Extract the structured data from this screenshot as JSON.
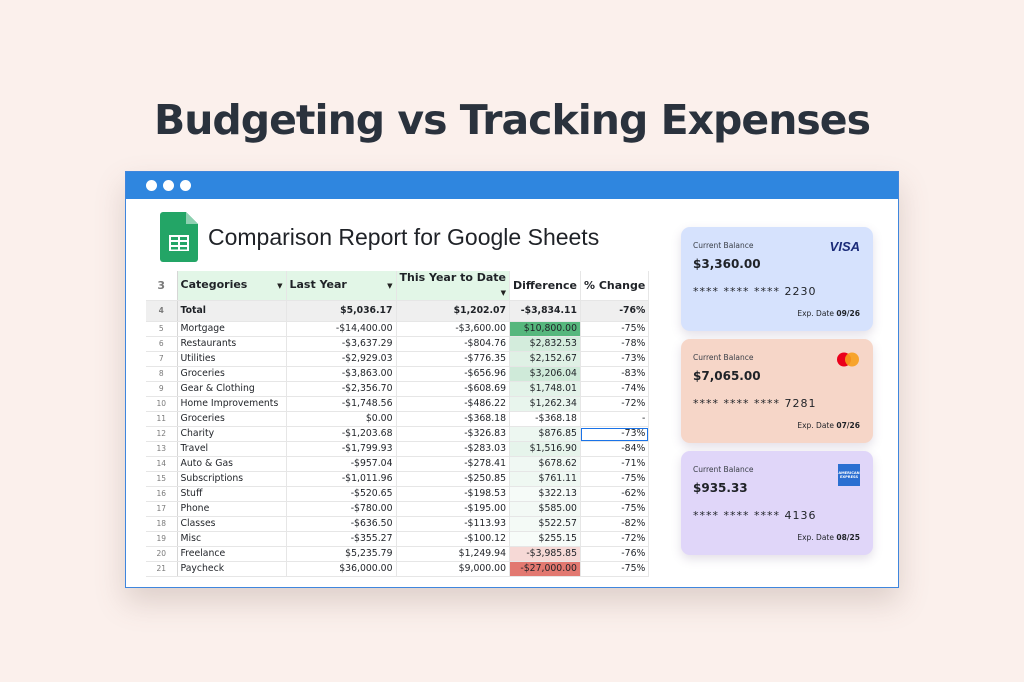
{
  "headline": "Budgeting vs Tracking Expenses",
  "report_title": "Comparison Report for Google Sheets",
  "columns": {
    "categories": "Categories",
    "last_year": "Last Year",
    "this_year": "This Year to Date",
    "difference": "Difference",
    "pct_change": "% Change"
  },
  "header_row_number": "3",
  "total": {
    "row_number": "4",
    "label": "Total",
    "last_year": "$5,036.17",
    "this_year": "$1,202.07",
    "difference": "-$3,834.11",
    "pct_change": "-76%"
  },
  "rows": [
    {
      "n": "5",
      "cat": "Mortgage",
      "ly": "-$14,400.00",
      "ty": "-$3,600.00",
      "diff": "$10,800.00",
      "pct": "-75%",
      "tone": "#56b77d"
    },
    {
      "n": "6",
      "cat": "Restaurants",
      "ly": "-$3,637.29",
      "ty": "-$804.76",
      "diff": "$2,832.53",
      "pct": "-78%",
      "tone": "#d3ecdc"
    },
    {
      "n": "7",
      "cat": "Utilities",
      "ly": "-$2,929.03",
      "ty": "-$776.35",
      "diff": "$2,152.67",
      "pct": "-73%",
      "tone": "#dff1e5"
    },
    {
      "n": "8",
      "cat": "Groceries",
      "ly": "-$3,863.00",
      "ty": "-$656.96",
      "diff": "$3,206.04",
      "pct": "-83%",
      "tone": "#cfead9"
    },
    {
      "n": "9",
      "cat": "Gear & Clothing",
      "ly": "-$2,356.70",
      "ty": "-$608.69",
      "diff": "$1,748.01",
      "pct": "-74%",
      "tone": "#e3f3e9"
    },
    {
      "n": "10",
      "cat": "Home Improvements",
      "ly": "-$1,748.56",
      "ty": "-$486.22",
      "diff": "$1,262.34",
      "pct": "-72%",
      "tone": "#e8f5ed"
    },
    {
      "n": "11",
      "cat": "Groceries",
      "ly": "$0.00",
      "ty": "-$368.18",
      "diff": "-$368.18",
      "pct": "-",
      "tone": "#ffffff"
    },
    {
      "n": "12",
      "cat": "Charity",
      "ly": "-$1,203.68",
      "ty": "-$326.83",
      "diff": "$876.85",
      "pct": "-73%",
      "tone": "#edf7f1"
    },
    {
      "n": "13",
      "cat": "Travel",
      "ly": "-$1,799.93",
      "ty": "-$283.03",
      "diff": "$1,516.90",
      "pct": "-84%",
      "tone": "#e6f4eb"
    },
    {
      "n": "14",
      "cat": "Auto & Gas",
      "ly": "-$957.04",
      "ty": "-$278.41",
      "diff": "$678.62",
      "pct": "-71%",
      "tone": "#f0f8f3"
    },
    {
      "n": "15",
      "cat": "Subscriptions",
      "ly": "-$1,011.96",
      "ty": "-$250.85",
      "diff": "$761.11",
      "pct": "-75%",
      "tone": "#eff8f2"
    },
    {
      "n": "16",
      "cat": "Stuff",
      "ly": "-$520.65",
      "ty": "-$198.53",
      "diff": "$322.13",
      "pct": "-62%",
      "tone": "#f6fbf8"
    },
    {
      "n": "17",
      "cat": "Phone",
      "ly": "-$780.00",
      "ty": "-$195.00",
      "diff": "$585.00",
      "pct": "-75%",
      "tone": "#f3f9f5"
    },
    {
      "n": "18",
      "cat": "Classes",
      "ly": "-$636.50",
      "ty": "-$113.93",
      "diff": "$522.57",
      "pct": "-82%",
      "tone": "#f4faf6"
    },
    {
      "n": "19",
      "cat": "Misc",
      "ly": "-$355.27",
      "ty": "-$100.12",
      "diff": "$255.15",
      "pct": "-72%",
      "tone": "#f7fcf9"
    },
    {
      "n": "20",
      "cat": "Freelance",
      "ly": "$5,235.79",
      "ty": "$1,249.94",
      "diff": "-$3,985.85",
      "pct": "-76%",
      "tone": "#f6d9d6"
    },
    {
      "n": "21",
      "cat": "Paycheck",
      "ly": "$36,000.00",
      "ty": "$9,000.00",
      "diff": "-$27,000.00",
      "pct": "-75%",
      "tone": "#e27870"
    }
  ],
  "selected_row_number": "12",
  "cards": [
    {
      "label": "Current Balance",
      "balance": "$3,360.00",
      "masked": "**** **** ****",
      "last4": "2230",
      "exp_label": "Exp. Date",
      "exp": "09/26",
      "brand": "VISA",
      "bg": "#d6e2fd"
    },
    {
      "label": "Current Balance",
      "balance": "$7,065.00",
      "masked": "**** **** ****",
      "last4": "7281",
      "exp_label": "Exp. Date",
      "exp": "07/26",
      "brand": "mastercard-logo",
      "bg": "#f6d6c8"
    },
    {
      "label": "Current Balance",
      "balance": "$935.33",
      "masked": "**** **** ****",
      "last4": "4136",
      "exp_label": "Exp. Date",
      "exp": "08/25",
      "brand": "amex-logo",
      "bg": "#e0d6f9"
    }
  ],
  "amex_text": "AMERICAN EXPRESS"
}
